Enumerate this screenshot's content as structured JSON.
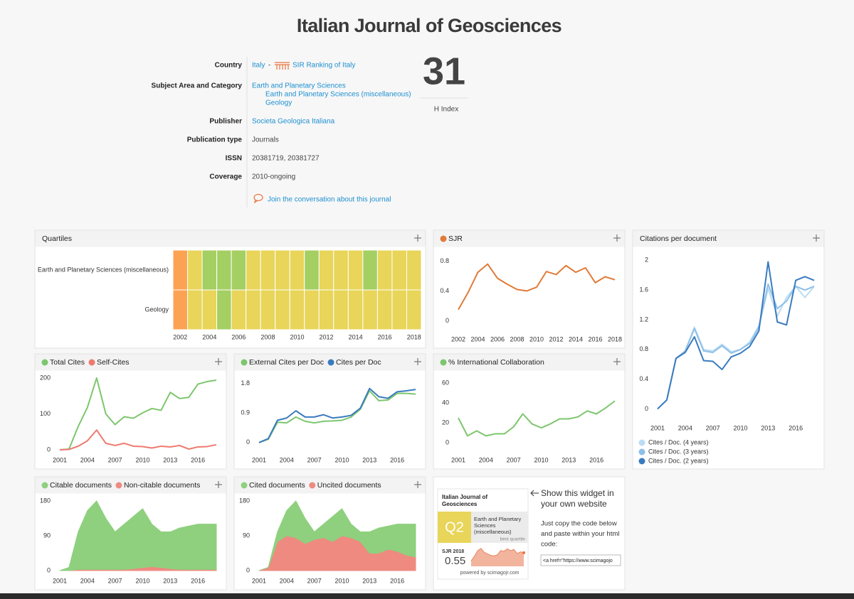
{
  "header": {
    "title": "Italian Journal of Geosciences"
  },
  "info": [
    {
      "label": "Country",
      "values": [
        "Italy",
        "-",
        "SIR Ranking of Italy"
      ]
    },
    {
      "label": "Subject Area and Category",
      "values": [
        "Earth and Planetary Sciences",
        "Earth and Planetary Sciences (miscellaneous)",
        "Geology"
      ]
    },
    {
      "label": "Publisher",
      "values": [
        "Societa Geologica Italiana"
      ]
    },
    {
      "label": "Publication type",
      "values": [
        "Journals"
      ]
    },
    {
      "label": "ISSN",
      "values": [
        "20381719, 20381727"
      ]
    },
    {
      "label": "Coverage",
      "values": [
        "2010-ongoing"
      ]
    }
  ],
  "conversation_link": "Join the conversation about this journal",
  "h_index": {
    "value": 31,
    "label": "H Index"
  },
  "chart_data": [
    {
      "type": "heatmap",
      "title": "Quartiles",
      "x": [
        2002,
        2003,
        2004,
        2005,
        2006,
        2007,
        2008,
        2009,
        2010,
        2011,
        2012,
        2013,
        2014,
        2015,
        2016,
        2017,
        2018
      ],
      "xticks": [
        2002,
        2004,
        2006,
        2008,
        2010,
        2012,
        2014,
        2016,
        2018
      ],
      "rows": [
        "Earth and Planetary Sciences (miscellaneous)",
        "Geology"
      ],
      "values": [
        [
          3,
          2,
          1,
          1,
          1,
          2,
          2,
          2,
          2,
          1,
          2,
          2,
          2,
          1,
          2,
          2,
          2
        ],
        [
          3,
          2,
          2,
          1,
          2,
          2,
          2,
          2,
          2,
          2,
          2,
          2,
          2,
          2,
          2,
          2,
          2
        ]
      ],
      "colors": [
        "#a4cf63",
        "#e8d559",
        "#fba353"
      ]
    },
    {
      "type": "line",
      "legend": "top",
      "x": [
        2002,
        2003,
        2004,
        2005,
        2006,
        2007,
        2008,
        2009,
        2010,
        2011,
        2012,
        2013,
        2014,
        2015,
        2016,
        2017,
        2018
      ],
      "xlim": [
        2002,
        2018
      ],
      "xticks": [
        2002,
        2004,
        2006,
        2008,
        2010,
        2012,
        2014,
        2016,
        2018
      ],
      "ylim": [
        -0.11,
        0.89
      ],
      "yticks": [
        0,
        0.4,
        0.8
      ],
      "series": [
        {
          "name": "SJR",
          "color": "#e07b39",
          "values": [
            0.15,
            0.38,
            0.65,
            0.76,
            0.57,
            0.49,
            0.42,
            0.4,
            0.45,
            0.66,
            0.62,
            0.74,
            0.65,
            0.71,
            0.51,
            0.59,
            0.55
          ]
        }
      ]
    },
    {
      "type": "line",
      "title": "Citations per document",
      "legend": "bottom",
      "x": [
        2001,
        2002,
        2003,
        2004,
        2005,
        2006,
        2007,
        2008,
        2009,
        2010,
        2011,
        2012,
        2013,
        2014,
        2015,
        2016,
        2017,
        2018
      ],
      "xlim": [
        2001,
        2018
      ],
      "xticks": [
        2001,
        2004,
        2007,
        2010,
        2013,
        2016
      ],
      "ylim": [
        -0.12,
        2.08
      ],
      "yticks": [
        0,
        0.4,
        0.8,
        1.2,
        1.6,
        2
      ],
      "series": [
        {
          "name": "Cites / Doc. (4 years)",
          "color": "#bcdcf3",
          "values": [
            0,
            0.12,
            0.68,
            0.78,
            1.1,
            0.8,
            0.78,
            0.87,
            0.77,
            0.8,
            0.9,
            1.12,
            1.62,
            1.25,
            1.5,
            1.65,
            1.5,
            1.65
          ]
        },
        {
          "name": "Cites / Doc. (3 years)",
          "color": "#8ec0e8",
          "values": [
            0,
            0.12,
            0.68,
            0.78,
            1.08,
            0.78,
            0.76,
            0.85,
            0.75,
            0.8,
            0.88,
            1.1,
            1.68,
            1.35,
            1.45,
            1.65,
            1.6,
            1.65
          ]
        },
        {
          "name": "Cites / Doc. (2 years)",
          "color": "#3a7bbf",
          "values": [
            0,
            0.12,
            0.68,
            0.76,
            0.97,
            0.65,
            0.64,
            0.53,
            0.7,
            0.75,
            0.84,
            1.05,
            1.98,
            1.17,
            1.13,
            1.73,
            1.78,
            1.73
          ]
        }
      ]
    },
    {
      "type": "line",
      "legend": "top",
      "x": [
        2001,
        2002,
        2003,
        2004,
        2005,
        2006,
        2007,
        2008,
        2009,
        2010,
        2011,
        2012,
        2013,
        2014,
        2015,
        2016,
        2017,
        2018
      ],
      "xlim": [
        2001,
        2018
      ],
      "xticks": [
        2001,
        2004,
        2007,
        2010,
        2013,
        2016
      ],
      "ylim": [
        0,
        200
      ],
      "yticks": [
        0,
        100,
        200
      ],
      "series": [
        {
          "name": "Total Cites",
          "color": "#7dc66d",
          "values": [
            0,
            2,
            65,
            118,
            200,
            100,
            70,
            92,
            88,
            103,
            115,
            110,
            160,
            143,
            146,
            183,
            190,
            194
          ]
        },
        {
          "name": "Self-Cites",
          "color": "#ee7a6f",
          "values": [
            0,
            1,
            10,
            25,
            55,
            18,
            12,
            18,
            10,
            9,
            5,
            10,
            8,
            12,
            2,
            8,
            9,
            14
          ]
        }
      ]
    },
    {
      "type": "line",
      "legend": "top",
      "x": [
        2001,
        2002,
        2003,
        2004,
        2005,
        2006,
        2007,
        2008,
        2009,
        2010,
        2011,
        2012,
        2013,
        2014,
        2015,
        2016,
        2017,
        2018
      ],
      "xlim": [
        2001,
        2018
      ],
      "xticks": [
        2001,
        2004,
        2007,
        2010,
        2013,
        2016
      ],
      "ylim": [
        -0.22,
        1.97
      ],
      "yticks": [
        0,
        0.9,
        1.8
      ],
      "series": [
        {
          "name": "External Cites per Doc",
          "color": "#7dc66d",
          "values": [
            0,
            0.1,
            0.62,
            0.6,
            0.78,
            0.65,
            0.6,
            0.65,
            0.66,
            0.68,
            0.78,
            1.02,
            1.58,
            1.28,
            1.3,
            1.5,
            1.5,
            1.48
          ]
        },
        {
          "name": "Cites per Doc",
          "color": "#3a7bbf",
          "values": [
            0,
            0.12,
            0.68,
            0.75,
            0.97,
            0.78,
            0.78,
            0.85,
            0.75,
            0.78,
            0.83,
            1.05,
            1.65,
            1.4,
            1.35,
            1.55,
            1.58,
            1.62
          ]
        }
      ]
    },
    {
      "type": "line",
      "legend": "top",
      "x": [
        2001,
        2002,
        2003,
        2004,
        2005,
        2006,
        2007,
        2008,
        2009,
        2010,
        2011,
        2012,
        2013,
        2014,
        2015,
        2016,
        2017,
        2018
      ],
      "xlim": [
        2001,
        2018
      ],
      "xticks": [
        2001,
        2004,
        2007,
        2010,
        2013,
        2016
      ],
      "ylim": [
        -7,
        65
      ],
      "yticks": [
        0,
        20,
        40,
        60
      ],
      "series": [
        {
          "name": "% International Collaboration",
          "color": "#7dc66d",
          "values": [
            25,
            7,
            12,
            7,
            9,
            9,
            16,
            29,
            19,
            15,
            19,
            24,
            24,
            26,
            32,
            29,
            35,
            42
          ]
        }
      ]
    },
    {
      "type": "area",
      "stacked": true,
      "legend": "top",
      "x": [
        2001,
        2002,
        2003,
        2004,
        2005,
        2006,
        2007,
        2008,
        2009,
        2010,
        2011,
        2012,
        2013,
        2014,
        2015,
        2016,
        2017,
        2018
      ],
      "xlim": [
        2001,
        2018
      ],
      "xticks": [
        2001,
        2004,
        2007,
        2010,
        2013,
        2016
      ],
      "ylim": [
        0,
        180
      ],
      "yticks": [
        0,
        90,
        180
      ],
      "series": [
        {
          "name": "Citable documents",
          "color": "#8ed07e",
          "values": [
            0,
            8,
            97,
            152,
            177,
            132,
            97,
            117,
            135,
            152,
            110,
            92,
            95,
            107,
            112,
            117,
            117,
            117
          ]
        },
        {
          "name": "Non-citable documents",
          "color": "#ef8a80",
          "values": [
            0,
            0,
            3,
            3,
            3,
            3,
            3,
            3,
            5,
            8,
            10,
            8,
            5,
            3,
            3,
            3,
            3,
            3
          ]
        }
      ]
    },
    {
      "type": "area",
      "stacked": true,
      "legend": "top",
      "x": [
        2001,
        2002,
        2003,
        2004,
        2005,
        2006,
        2007,
        2008,
        2009,
        2010,
        2011,
        2012,
        2013,
        2014,
        2015,
        2016,
        2017,
        2018
      ],
      "xlim": [
        2001,
        2018
      ],
      "xticks": [
        2001,
        2004,
        2007,
        2010,
        2013,
        2016
      ],
      "ylim": [
        0,
        180
      ],
      "yticks": [
        0,
        90,
        180
      ],
      "series": [
        {
          "name": "Cited documents",
          "color": "#8ed07e",
          "values": [
            0,
            0,
            25,
            65,
            95,
            65,
            20,
            35,
            65,
            70,
            35,
            25,
            55,
            65,
            60,
            70,
            80,
            85
          ]
        },
        {
          "name": "Uncited documents",
          "color": "#ef8a80",
          "values": [
            0,
            8,
            75,
            90,
            85,
            70,
            80,
            85,
            75,
            90,
            85,
            75,
            45,
            45,
            55,
            50,
            40,
            35
          ]
        }
      ]
    }
  ],
  "widget": {
    "title": [
      "Italian Journal of",
      "Geosciences"
    ],
    "quartile": "Q2",
    "category": [
      "Earth and Planetary",
      "Sciences",
      "(miscellaneous)"
    ],
    "quartile_note": "best quartile",
    "sjr_label": "SJR 2018",
    "sjr_value": "0.55",
    "powered_by": "powered by scimagojr.com",
    "heading": [
      "Show this widget in",
      "your own website"
    ],
    "instructions": [
      "Just copy the code below",
      "and paste within your html",
      "code:"
    ],
    "code": "<a href=\"https://www.scimagojo"
  }
}
